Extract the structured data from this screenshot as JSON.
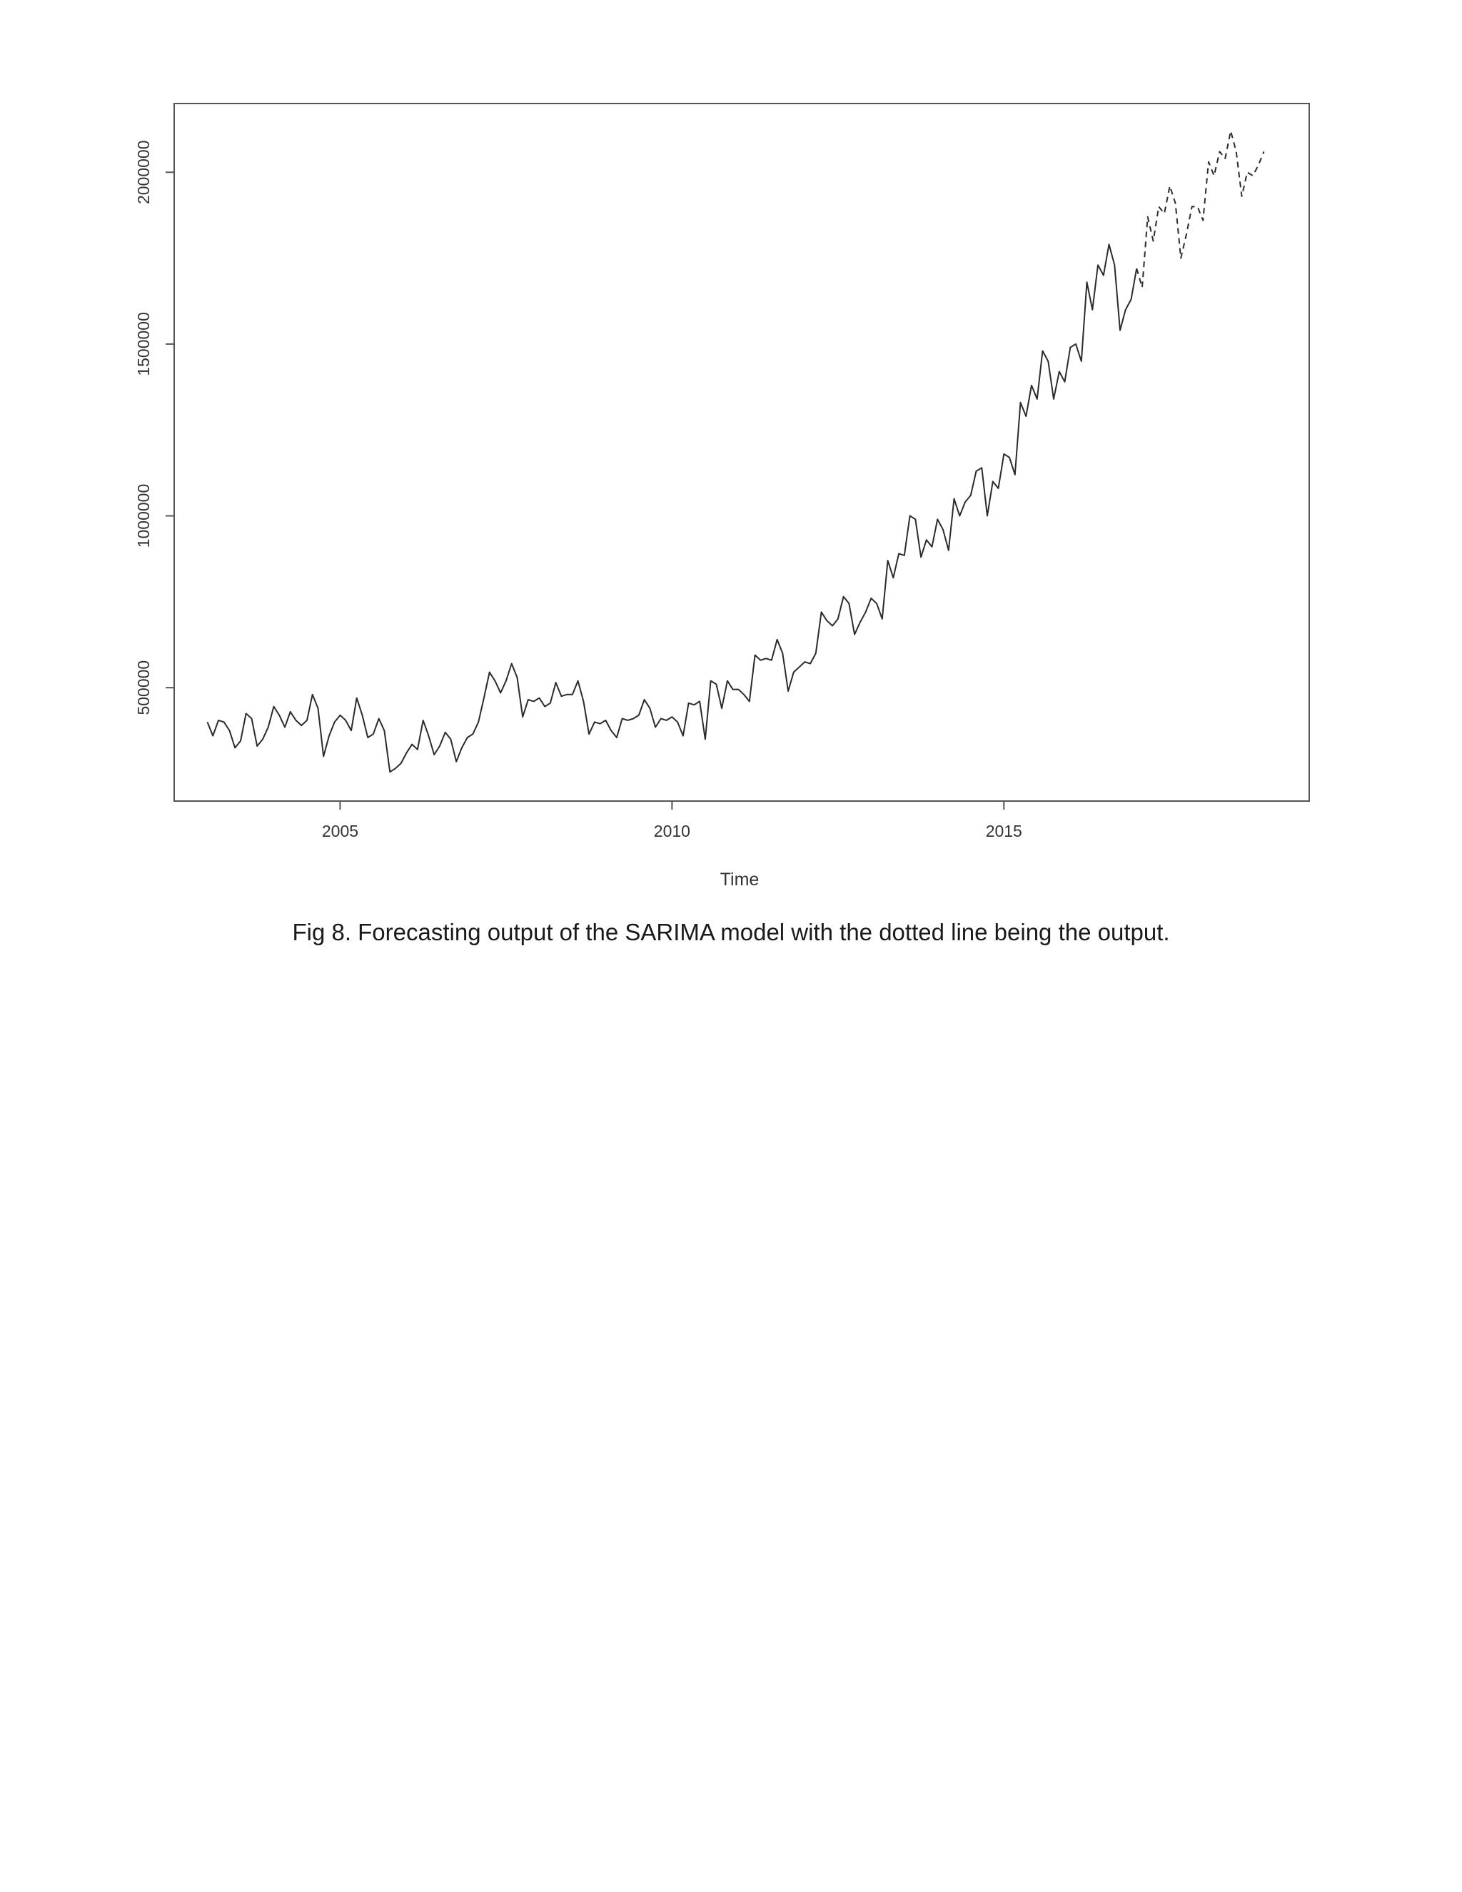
{
  "caption": "Fig 8. Forecasting output of the SARIMA model with the dotted line being the output.",
  "chart_data": {
    "type": "line",
    "title": "",
    "xlabel": "Time",
    "ylabel": "",
    "xlim": [
      2002.5,
      2019.6
    ],
    "ylim": [
      170000,
      2200000
    ],
    "xticks": [
      2005,
      2010,
      2015
    ],
    "xtick_labels": [
      "2005",
      "2010",
      "2015"
    ],
    "yticks": [
      500000,
      1000000,
      1500000,
      2000000
    ],
    "ytick_labels": [
      "500000",
      "1000000",
      "1500000",
      "2000000"
    ],
    "grid": false,
    "legend": "none",
    "colors": {
      "observed": "#2b2b2b",
      "forecast": "#2b2b2b",
      "axis": "#555555"
    },
    "series": [
      {
        "style": "solid",
        "x_start": 2003.0,
        "x_step": 0.08333333,
        "values": [
          400000,
          360000,
          405000,
          400000,
          375000,
          325000,
          345000,
          425000,
          410000,
          330000,
          350000,
          385000,
          445000,
          420000,
          385000,
          430000,
          405000,
          390000,
          405000,
          480000,
          440000,
          300000,
          360000,
          400000,
          420000,
          405000,
          375000,
          470000,
          420000,
          355000,
          365000,
          410000,
          375000,
          255000,
          265000,
          280000,
          310000,
          335000,
          320000,
          405000,
          360000,
          305000,
          330000,
          370000,
          350000,
          285000,
          325000,
          355000,
          365000,
          400000,
          470000,
          545000,
          520000,
          485000,
          520000,
          570000,
          530000,
          415000,
          465000,
          460000,
          470000,
          445000,
          455000,
          515000,
          475000,
          480000,
          480000,
          520000,
          460000,
          365000,
          400000,
          395000,
          405000,
          375000,
          355000,
          410000,
          405000,
          410000,
          420000,
          465000,
          440000,
          385000,
          410000,
          405000,
          415000,
          400000,
          360000,
          455000,
          450000,
          460000,
          350000,
          520000,
          510000,
          440000,
          520000,
          495000,
          495000,
          480000,
          460000,
          595000,
          580000,
          585000,
          580000,
          640000,
          600000,
          490000,
          545000,
          560000,
          575000,
          570000,
          600000,
          720000,
          695000,
          680000,
          700000,
          765000,
          745000,
          655000,
          690000,
          720000,
          760000,
          745000,
          700000,
          870000,
          820000,
          890000,
          885000,
          1000000,
          990000,
          880000,
          930000,
          910000,
          990000,
          960000,
          900000,
          1050000,
          1000000,
          1040000,
          1060000,
          1130000,
          1140000,
          1000000,
          1100000,
          1080000,
          1180000,
          1170000,
          1120000,
          1330000,
          1290000,
          1380000,
          1340000,
          1480000,
          1450000,
          1340000,
          1420000,
          1390000,
          1490000,
          1500000,
          1450000,
          1680000,
          1600000,
          1730000,
          1700000,
          1790000,
          1730000,
          1540000,
          1600000,
          1630000,
          1720000
        ]
      },
      {
        "style": "dashed",
        "x_start": 2017.0,
        "x_step": 0.08333333,
        "values": [
          1720000,
          1665000,
          1870000,
          1800000,
          1900000,
          1880000,
          1960000,
          1910000,
          1750000,
          1820000,
          1900000,
          1900000,
          1860000,
          2030000,
          1990000,
          2060000,
          2040000,
          2120000,
          2060000,
          1930000,
          2000000,
          1990000,
          2020000,
          2060000
        ]
      }
    ]
  }
}
